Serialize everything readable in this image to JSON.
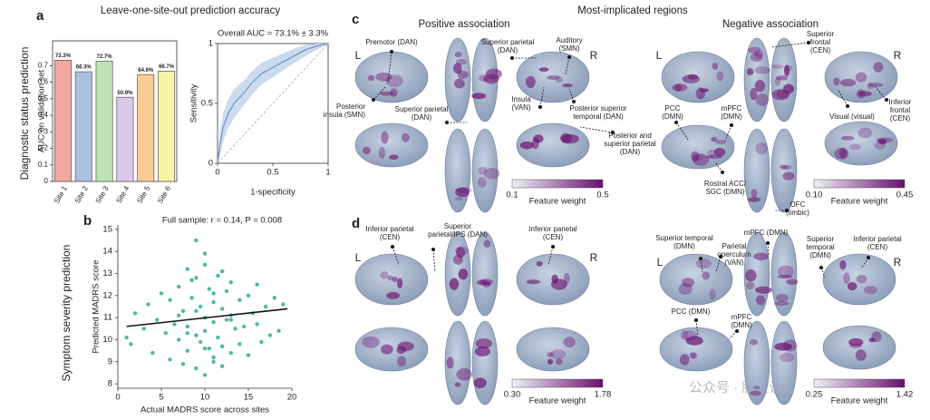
{
  "panel_labels": [
    "a",
    "b",
    "c",
    "d"
  ],
  "panel_a_title": "Leave-one-site-out prediction accuracy",
  "chart_data": [
    {
      "type": "bar",
      "row_label": "Diagnostic status prediction",
      "ylabel": "AUC on validation set",
      "categories": [
        "Site 1",
        "Site 2",
        "Site 3",
        "Site 4",
        "Site 5",
        "Site 6"
      ],
      "values": [
        0.733,
        0.663,
        0.727,
        0.509,
        0.646,
        0.667
      ],
      "value_labels": [
        "73.3%",
        "66.3%",
        "72.7%",
        "50.9%",
        "64.6%",
        "66.7%"
      ],
      "colors": [
        "#f4a6a0",
        "#abc0e0",
        "#bce3b4",
        "#d9c9e8",
        "#f9cc94",
        "#f6f3a6"
      ],
      "ylim": [
        0,
        0.85
      ],
      "yticks": [
        0,
        0.1,
        0.2,
        0.3,
        0.4,
        0.5,
        0.6,
        0.7
      ]
    },
    {
      "type": "line",
      "title": "Overall AUC = 73.1% ± 3.3%",
      "xlabel": "1-specificity",
      "ylabel": "Sensitivity",
      "x": [
        0,
        0.02,
        0.05,
        0.1,
        0.15,
        0.2,
        0.25,
        0.3,
        0.4,
        0.5,
        0.6,
        0.7,
        0.8,
        0.9,
        1
      ],
      "values": [
        0,
        0.15,
        0.3,
        0.42,
        0.5,
        0.55,
        0.6,
        0.66,
        0.75,
        0.8,
        0.85,
        0.9,
        0.95,
        0.98,
        1
      ],
      "lower": [
        0,
        0.05,
        0.18,
        0.3,
        0.38,
        0.44,
        0.5,
        0.56,
        0.66,
        0.72,
        0.78,
        0.84,
        0.9,
        0.95,
        1
      ],
      "upper": [
        0,
        0.25,
        0.42,
        0.54,
        0.62,
        0.66,
        0.7,
        0.76,
        0.84,
        0.88,
        0.92,
        0.96,
        0.99,
        1,
        1
      ],
      "color": "#6f93c8",
      "band_color": "#cbdaee",
      "xlim": [
        0,
        1
      ],
      "ylim": [
        0,
        1
      ],
      "xticks": [
        0,
        0.5,
        1
      ],
      "yticks": [
        0,
        0.5,
        1
      ]
    },
    {
      "type": "scatter",
      "row_label": "Symptom severity prediction",
      "title": "Full sample: r = 0.14, P = 0.008",
      "xlabel": "Actual MADRS score across sites",
      "ylabel": "Predicted MADRS score",
      "color": "#4fb8a6",
      "x": [
        1,
        1.5,
        2,
        3,
        3.5,
        4,
        4.5,
        5,
        5.5,
        6,
        6,
        6.5,
        7,
        7,
        7.5,
        7.5,
        8,
        8,
        8,
        8.5,
        8.5,
        9,
        9,
        9,
        9.5,
        9.5,
        10,
        10,
        10,
        10,
        10.5,
        10.5,
        11,
        11,
        11,
        11.5,
        11.5,
        12,
        12,
        12,
        12.5,
        12.5,
        13,
        13,
        13,
        13.5,
        14,
        14,
        14.5,
        15,
        15,
        15.5,
        16,
        16,
        16.5,
        17,
        17.5,
        18,
        18.5,
        19,
        9,
        10,
        11,
        8,
        12,
        7,
        13,
        10,
        11,
        9
      ],
      "values": [
        10.1,
        9.8,
        11.2,
        10.5,
        11.6,
        9.4,
        10.9,
        12.1,
        10.3,
        11.8,
        9.1,
        10.7,
        12.4,
        10,
        11.3,
        8.9,
        13.2,
        10.6,
        9.5,
        11.9,
        12.7,
        14.5,
        10.2,
        8.7,
        11.5,
        9.9,
        13.9,
        11,
        10.4,
        8.4,
        12.3,
        9.6,
        11.7,
        10.8,
        9.2,
        12.9,
        10.1,
        11.4,
        13.1,
        9.7,
        10.9,
        12.2,
        11.1,
        9.4,
        12.6,
        10.5,
        11.8,
        9.8,
        10.6,
        12,
        9.3,
        11.2,
        10.7,
        12.5,
        9.9,
        11.5,
        10.2,
        11.9,
        10.4,
        11.6,
        12.8,
        13.4,
        9,
        10.3,
        8.8,
        11.1,
        10.9,
        9.6,
        12.1,
        11.3
      ],
      "trend_x": [
        1,
        19.5
      ],
      "trend": [
        10.6,
        11.4
      ],
      "trend_color": "#111111",
      "xlim": [
        0,
        20
      ],
      "ylim": [
        7.8,
        15.2
      ],
      "xticks": [
        0,
        5,
        10,
        15,
        20
      ],
      "yticks": [
        8,
        9,
        10,
        11,
        12,
        13,
        14,
        15
      ]
    }
  ],
  "brains": {
    "title": "Most-implicated regions",
    "hemispheres": [
      "L",
      "R"
    ],
    "columns": [
      "Positive association",
      "Negative association"
    ],
    "colormap": [
      "#eef1f6",
      "#6a0d6e"
    ],
    "panels": [
      {
        "labels": [
          [
            "Premotor (DAN)"
          ],
          [
            "Posterior",
            "insula (SMN)"
          ],
          [
            "Superior parietal",
            "(DAN)"
          ],
          [
            "Superior parietal",
            "(DAN)"
          ],
          [
            "Auditory",
            "(SMN)"
          ],
          [
            "Insula",
            "(VAN)"
          ],
          [
            "Posterior superior",
            "temporal (DAN)"
          ],
          [
            "Posterior and",
            "superior parietal",
            "(DAN)"
          ]
        ],
        "colorbar": {
          "min": 0.1,
          "max": 0.5,
          "label": "Feature weight"
        }
      },
      {
        "labels": [
          [
            "Superior",
            "frontal",
            "(CEN)"
          ],
          [
            "PCC",
            "(DMN)"
          ],
          [
            "mPFC",
            "(DMN)"
          ],
          [
            "Visual (visual)"
          ],
          [
            "Inferior",
            "frontal",
            "(CEN)"
          ],
          [
            "Rostral ACC/",
            "SGC (DMN)"
          ],
          [
            "OFC",
            "(limbic)"
          ]
        ],
        "colorbar": {
          "min": {
            "value": 0.1,
            "label": "0.10"
          },
          "max": 0.45,
          "label": "Feature weight"
        }
      },
      {
        "labels": [
          [
            "Inferior parietal",
            "(CEN)"
          ],
          [
            "Superior",
            "parietal/IPS (DAN)"
          ],
          [
            "Inferior parietal",
            "(CEN)"
          ]
        ],
        "colorbar": {
          "min": {
            "value": 0.3,
            "label": "0.30"
          },
          "max": 1.78,
          "label": "Feature weight"
        }
      },
      {
        "labels": [
          [
            "Superior temporal",
            "(DMN)"
          ],
          [
            "Parietal",
            "operculum",
            "(VAN)"
          ],
          [
            "mPFC (DMN)"
          ],
          [
            "Superior",
            "temporal",
            "(DMN)"
          ],
          [
            "Inferior parietal",
            "(CEN)"
          ],
          [
            "PCC (DMN)"
          ],
          [
            "mPFC",
            "(DMN)"
          ]
        ],
        "colorbar": {
          "min": 0.25,
          "max": 1.42,
          "label": "Feature weight"
        }
      }
    ]
  },
  "watermark": "公众号 · 脑之说"
}
